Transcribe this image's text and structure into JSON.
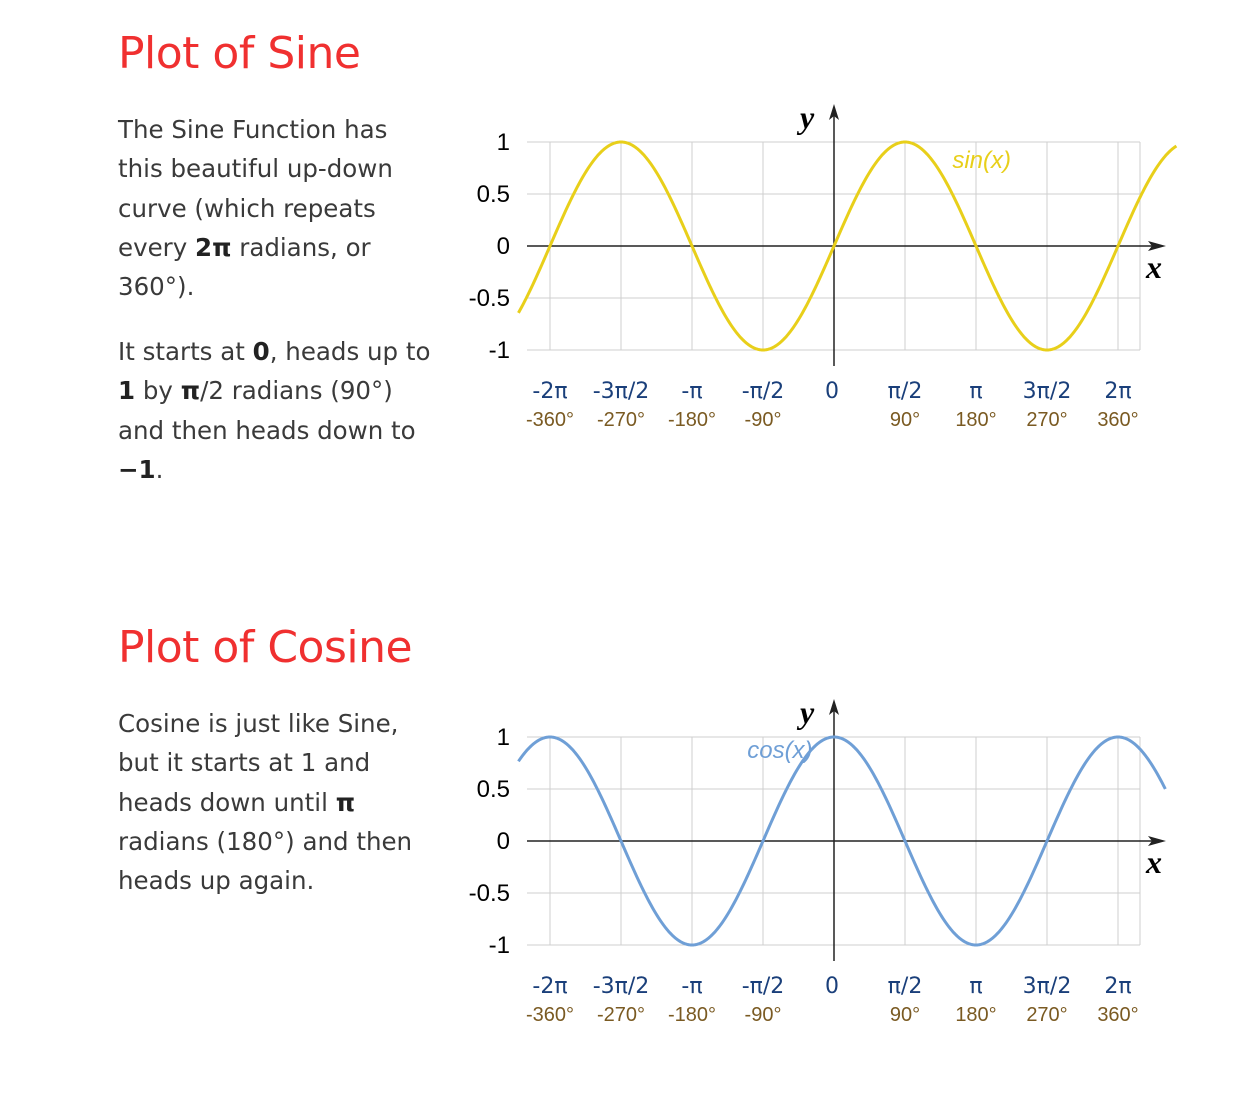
{
  "sections": [
    {
      "title": "Plot of Sine",
      "paragraphs": [
        [
          "The Sine Function has this beautiful up-down curve (which repeats every ",
          {
            "b": "2π"
          },
          " radians, or 360°)."
        ],
        [
          "It starts at ",
          {
            "b": "0"
          },
          ", heads up to ",
          {
            "b": "1"
          },
          " by ",
          {
            "b": "π"
          },
          "/2 radians (90°) and then heads down to ",
          {
            "b": "−1"
          },
          "."
        ]
      ]
    },
    {
      "title": "Plot of Cosine",
      "paragraphs": [
        [
          "Cosine is just like Sine, but it starts at 1 and heads down until ",
          {
            "b": "π"
          },
          " radians (180°) and then heads up again."
        ]
      ]
    }
  ],
  "chart_data": [
    {
      "type": "line",
      "function": "sin",
      "x_unit": "degrees",
      "xlim": [
        -400,
        435
      ],
      "ylim": [
        -1,
        1
      ],
      "grid": true,
      "series": [
        {
          "name": "sin(x)",
          "color": "#e8cf1a",
          "x_range": [
            -400,
            435
          ]
        }
      ],
      "y_ticks": [
        {
          "value": 1,
          "label": "1"
        },
        {
          "value": 0.5,
          "label": "0.5"
        },
        {
          "value": 0,
          "label": "0"
        },
        {
          "value": -0.5,
          "label": "-0.5"
        },
        {
          "value": -1,
          "label": "-1"
        }
      ],
      "x_ticks": [
        {
          "value": -360,
          "rad": "-2π",
          "deg": "-360°"
        },
        {
          "value": -270,
          "rad": "-3π/2",
          "deg": "-270°"
        },
        {
          "value": -180,
          "rad": "-π",
          "deg": "-180°"
        },
        {
          "value": -90,
          "rad": "-π/2",
          "deg": "-90°"
        },
        {
          "value": 0,
          "rad": "0",
          "deg": ""
        },
        {
          "value": 90,
          "rad": "π/2",
          "deg": "90°"
        },
        {
          "value": 180,
          "rad": "π",
          "deg": "180°"
        },
        {
          "value": 270,
          "rad": "3π/2",
          "deg": "270°"
        },
        {
          "value": 360,
          "rad": "2π",
          "deg": "360°"
        }
      ],
      "xlabel": "x",
      "ylabel": "y",
      "curve_label": "sin(x)",
      "curve_label_at": [
        150,
        0.75
      ]
    },
    {
      "type": "line",
      "function": "cos",
      "x_unit": "degrees",
      "xlim": [
        -400,
        435
      ],
      "ylim": [
        -1,
        1
      ],
      "grid": true,
      "series": [
        {
          "name": "cos(x)",
          "color": "#6f9fd6",
          "x_range": [
            -400,
            420
          ]
        }
      ],
      "y_ticks": [
        {
          "value": 1,
          "label": "1"
        },
        {
          "value": 0.5,
          "label": "0.5"
        },
        {
          "value": 0,
          "label": "0"
        },
        {
          "value": -0.5,
          "label": "-0.5"
        },
        {
          "value": -1,
          "label": "-1"
        }
      ],
      "x_ticks": [
        {
          "value": -360,
          "rad": "-2π",
          "deg": "-360°"
        },
        {
          "value": -270,
          "rad": "-3π/2",
          "deg": "-270°"
        },
        {
          "value": -180,
          "rad": "-π",
          "deg": "-180°"
        },
        {
          "value": -90,
          "rad": "-π/2",
          "deg": "-90°"
        },
        {
          "value": 0,
          "rad": "0",
          "deg": ""
        },
        {
          "value": 90,
          "rad": "π/2",
          "deg": "90°"
        },
        {
          "value": 180,
          "rad": "π",
          "deg": "180°"
        },
        {
          "value": 270,
          "rad": "3π/2",
          "deg": "270°"
        },
        {
          "value": 360,
          "rad": "2π",
          "deg": "360°"
        }
      ],
      "xlabel": "x",
      "ylabel": "y",
      "curve_label": "cos(x)",
      "curve_label_at": [
        -110,
        0.8
      ]
    }
  ]
}
